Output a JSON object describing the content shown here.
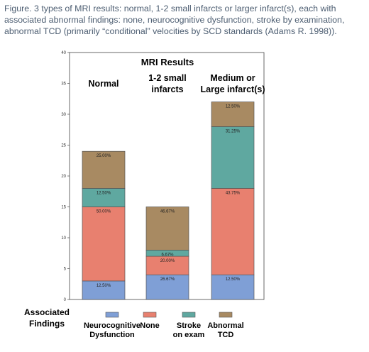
{
  "caption": "Figure. 3 types of MRI results: normal, 1-2 small infarcts or larger infarct(s), each with associated abnormal findings: none, neurocognitive dysfunction, stroke by examination, abnormal TCD (primarily “conditional” velocities by SCD standards (Adams R. 1998)).",
  "chart_data": {
    "type": "bar",
    "stacked": true,
    "title": "MRI Results",
    "categories": [
      [
        "Normal"
      ],
      [
        "1-2 small",
        "infarcts"
      ],
      [
        "Medium or",
        "Large infarct(s)"
      ]
    ],
    "ylim": [
      0,
      40
    ],
    "yticks": [
      0,
      5,
      10,
      15,
      20,
      25,
      30,
      35,
      40
    ],
    "legend_title": [
      "Associated",
      "Findings"
    ],
    "legend_position": "bottom",
    "series": [
      {
        "name": [
          "Neurocognitive",
          "Dysfunction"
        ],
        "color": "#7f9fd6",
        "values": [
          3,
          4,
          4
        ],
        "labels": [
          "12.50%",
          "26.67%",
          "12.50%"
        ]
      },
      {
        "name": [
          "None"
        ],
        "color": "#e8806f",
        "values": [
          12,
          3,
          14
        ],
        "labels": [
          "50.00%",
          "20.00%",
          "43.75%"
        ]
      },
      {
        "name": [
          "Stroke",
          "on exam"
        ],
        "color": "#5fa8a0",
        "values": [
          3,
          1,
          10
        ],
        "labels": [
          "12.50%",
          "6.67%",
          "31.25%"
        ]
      },
      {
        "name": [
          "Abnormal",
          "TCD"
        ],
        "color": "#a88a62",
        "values": [
          6,
          7,
          4
        ],
        "labels": [
          "25.00%",
          "46.67%",
          "12.50%"
        ]
      }
    ]
  }
}
